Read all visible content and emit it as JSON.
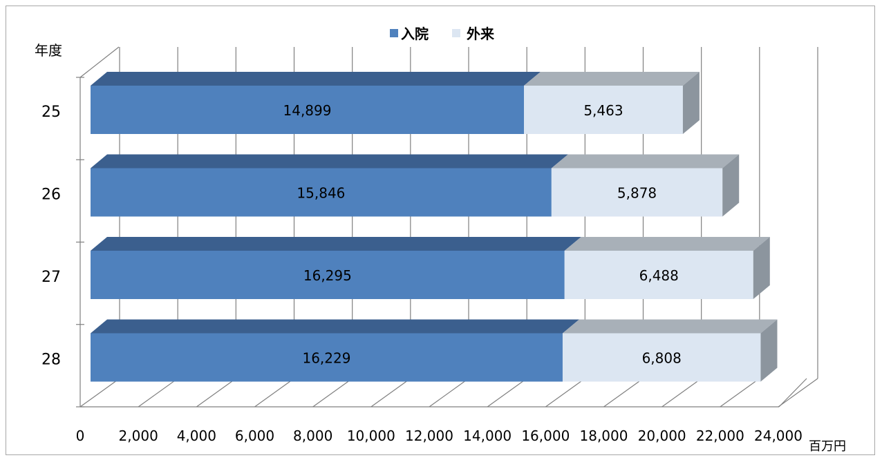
{
  "chart_data": {
    "type": "bar",
    "orientation": "horizontal",
    "stacked": true,
    "three_d": true,
    "categories": [
      "25",
      "26",
      "27",
      "28"
    ],
    "series": [
      {
        "name": "入院",
        "values": [
          14899,
          15846,
          16295,
          16229
        ],
        "labels": [
          "14,899",
          "15,846",
          "16,295",
          "16,229"
        ],
        "color": "#4f81bd",
        "top_color": "#3b5f8e"
      },
      {
        "name": "外来",
        "values": [
          5463,
          5878,
          6488,
          6808
        ],
        "labels": [
          "5,463",
          "5,878",
          "6,488",
          "6,808"
        ],
        "color": "#dce6f2",
        "top_color": "#a8b0b8"
      }
    ],
    "xlim": [
      0,
      24000
    ],
    "x_ticks": [
      "0",
      "2,000",
      "4,000",
      "6,000",
      "8,000",
      "10,000",
      "12,000",
      "14,000",
      "16,000",
      "18,000",
      "20,000",
      "22,000",
      "24,000"
    ],
    "ylabel": "年度",
    "xunit": "百万円",
    "grid": true,
    "legend_position": "top-center"
  }
}
